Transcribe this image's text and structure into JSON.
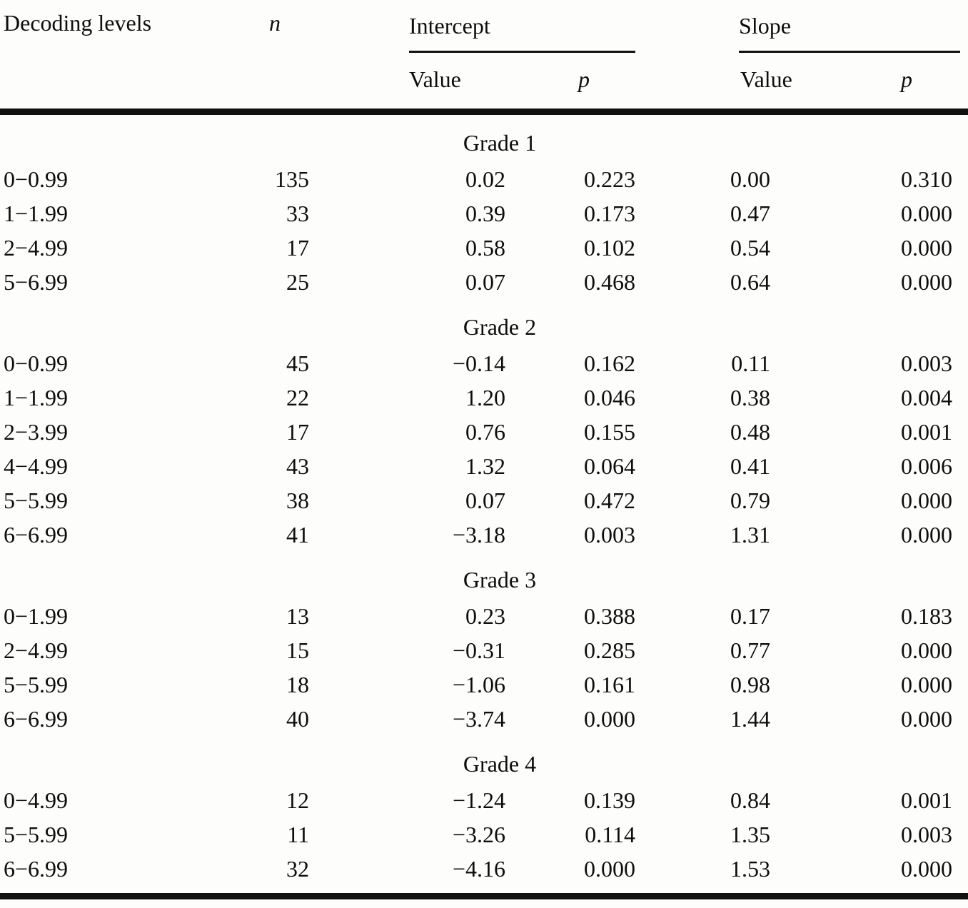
{
  "table": {
    "headers": {
      "decoding_levels": "Decoding levels",
      "n": "n",
      "intercept": "Intercept",
      "slope": "Slope",
      "intercept_value": "Value",
      "intercept_p": "p",
      "slope_value": "Value",
      "slope_p": "p"
    },
    "sections": [
      {
        "title": "Grade 1",
        "rows": [
          {
            "decoding_level": "0−0.99",
            "n": "135",
            "intercept_value": "0.02",
            "intercept_p": "0.223",
            "slope_value": "0.00",
            "slope_p": "0.310"
          },
          {
            "decoding_level": "1−1.99",
            "n": "33",
            "intercept_value": "0.39",
            "intercept_p": "0.173",
            "slope_value": "0.47",
            "slope_p": "0.000"
          },
          {
            "decoding_level": "2−4.99",
            "n": "17",
            "intercept_value": "0.58",
            "intercept_p": "0.102",
            "slope_value": "0.54",
            "slope_p": "0.000"
          },
          {
            "decoding_level": "5−6.99",
            "n": "25",
            "intercept_value": "0.07",
            "intercept_p": "0.468",
            "slope_value": "0.64",
            "slope_p": "0.000"
          }
        ]
      },
      {
        "title": "Grade 2",
        "rows": [
          {
            "decoding_level": "0−0.99",
            "n": "45",
            "intercept_value": "−0.14",
            "intercept_p": "0.162",
            "slope_value": "0.11",
            "slope_p": "0.003"
          },
          {
            "decoding_level": "1−1.99",
            "n": "22",
            "intercept_value": "1.20",
            "intercept_p": "0.046",
            "slope_value": "0.38",
            "slope_p": "0.004"
          },
          {
            "decoding_level": "2−3.99",
            "n": "17",
            "intercept_value": "0.76",
            "intercept_p": "0.155",
            "slope_value": "0.48",
            "slope_p": "0.001"
          },
          {
            "decoding_level": "4−4.99",
            "n": "43",
            "intercept_value": "1.32",
            "intercept_p": "0.064",
            "slope_value": "0.41",
            "slope_p": "0.006"
          },
          {
            "decoding_level": "5−5.99",
            "n": "38",
            "intercept_value": "0.07",
            "intercept_p": "0.472",
            "slope_value": "0.79",
            "slope_p": "0.000"
          },
          {
            "decoding_level": "6−6.99",
            "n": "41",
            "intercept_value": "−3.18",
            "intercept_p": "0.003",
            "slope_value": "1.31",
            "slope_p": "0.000"
          }
        ]
      },
      {
        "title": "Grade 3",
        "rows": [
          {
            "decoding_level": "0−1.99",
            "n": "13",
            "intercept_value": "0.23",
            "intercept_p": "0.388",
            "slope_value": "0.17",
            "slope_p": "0.183"
          },
          {
            "decoding_level": "2−4.99",
            "n": "15",
            "intercept_value": "−0.31",
            "intercept_p": "0.285",
            "slope_value": "0.77",
            "slope_p": "0.000"
          },
          {
            "decoding_level": "5−5.99",
            "n": "18",
            "intercept_value": "−1.06",
            "intercept_p": "0.161",
            "slope_value": "0.98",
            "slope_p": "0.000"
          },
          {
            "decoding_level": "6−6.99",
            "n": "40",
            "intercept_value": "−3.74",
            "intercept_p": "0.000",
            "slope_value": "1.44",
            "slope_p": "0.000"
          }
        ]
      },
      {
        "title": "Grade 4",
        "rows": [
          {
            "decoding_level": "0−4.99",
            "n": "12",
            "intercept_value": "−1.24",
            "intercept_p": "0.139",
            "slope_value": "0.84",
            "slope_p": "0.001"
          },
          {
            "decoding_level": "5−5.99",
            "n": "11",
            "intercept_value": "−3.26",
            "intercept_p": "0.114",
            "slope_value": "1.35",
            "slope_p": "0.003"
          },
          {
            "decoding_level": "6−6.99",
            "n": "32",
            "intercept_value": "−4.16",
            "intercept_p": "0.000",
            "slope_value": "1.53",
            "slope_p": "0.000"
          }
        ]
      }
    ]
  }
}
